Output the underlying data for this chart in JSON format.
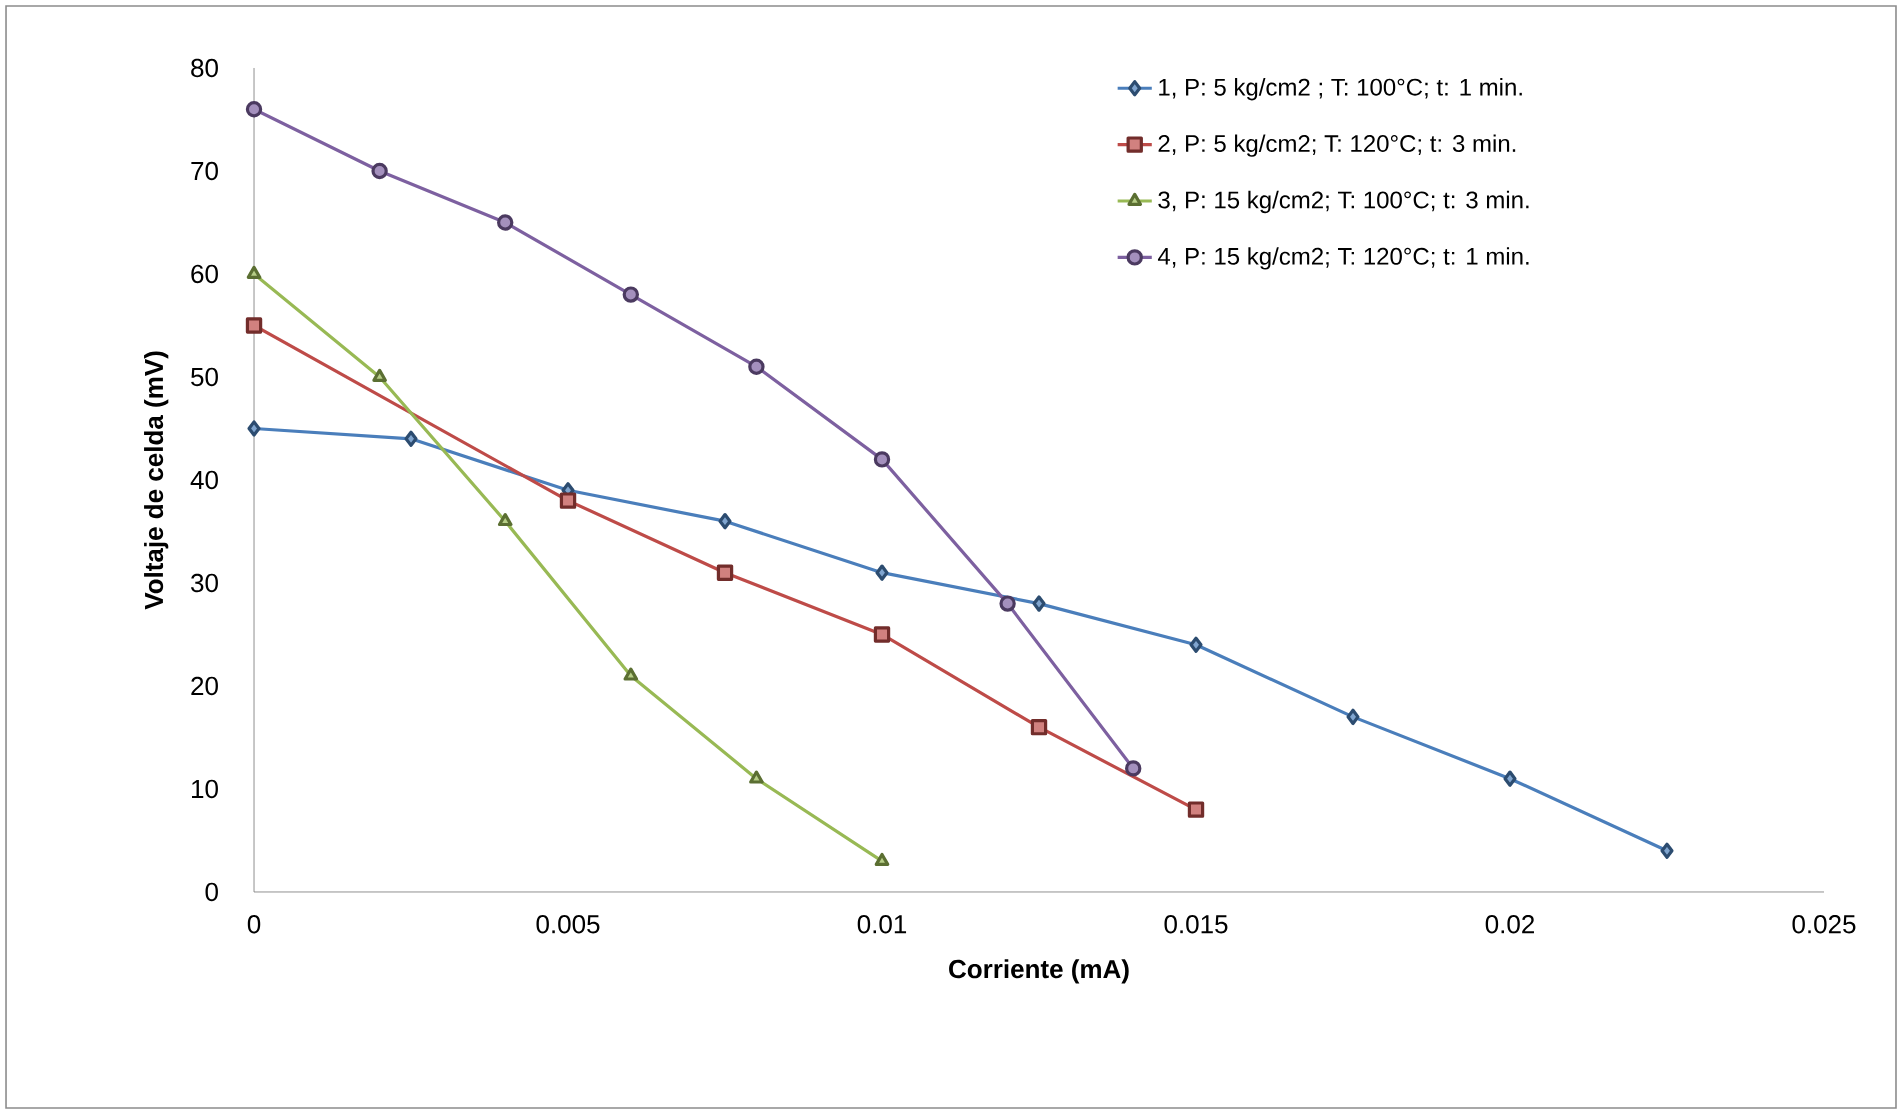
{
  "chart_data": {
    "type": "line",
    "xlabel": "Corriente (mA)",
    "ylabel": "Voltaje de celda (mV)",
    "xlim": [
      0,
      0.025
    ],
    "xticks": [
      0,
      0.005,
      0.01,
      0.015,
      0.02,
      0.025
    ],
    "ylim": [
      0,
      80
    ],
    "yticks": [
      0,
      10,
      20,
      30,
      40,
      50,
      60,
      70,
      80
    ],
    "grid": false,
    "legend": "top right",
    "line_style": "solid",
    "series": [
      {
        "name": "1, P: 5 kg/cm2 ; T: 100°C; t: 1 min.",
        "color": "#4a7ebb",
        "marker": "diamond",
        "x": [
          0,
          0.0025,
          0.005,
          0.0075,
          0.01,
          0.0125,
          0.015,
          0.0175,
          0.02,
          0.0225
        ],
        "values": [
          45,
          44,
          39,
          36,
          31,
          28,
          24,
          17,
          11,
          4
        ]
      },
      {
        "name": "2, P: 5 kg/cm2; T: 120°C; t: 3 min.",
        "color": "#be4b48",
        "marker": "square",
        "x": [
          0,
          0.005,
          0.0075,
          0.01,
          0.0125,
          0.015
        ],
        "values": [
          55,
          38,
          31,
          25,
          16,
          8
        ]
      },
      {
        "name": "3, P: 15 kg/cm2; T: 100°C; t: 3 min.",
        "color": "#98b954",
        "marker": "triangle",
        "x": [
          0,
          0.002,
          0.004,
          0.006,
          0.008,
          0.01
        ],
        "values": [
          60,
          50,
          36,
          21,
          11,
          3
        ]
      },
      {
        "name": "4, P: 15 kg/cm2; T: 120°C; t: 1 min.",
        "color": "#7d60a0",
        "marker": "circle",
        "x": [
          0,
          0.002,
          0.004,
          0.006,
          0.008,
          0.01,
          0.012,
          0.014
        ],
        "values": [
          76,
          70,
          65,
          58,
          51,
          42,
          28,
          12
        ]
      }
    ]
  }
}
